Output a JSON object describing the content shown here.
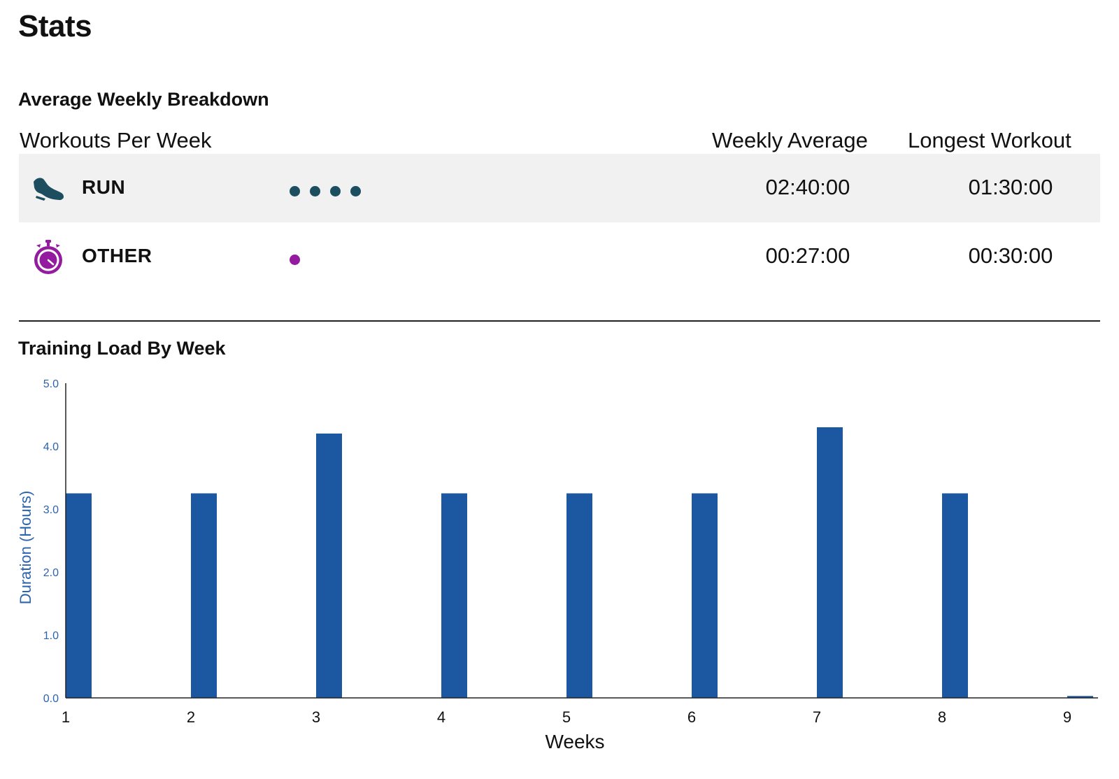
{
  "page": {
    "title": "Stats"
  },
  "breakdown": {
    "title": "Average Weekly Breakdown",
    "headers": {
      "workouts_per_week": "Workouts Per Week",
      "weekly_average": "Weekly Average",
      "longest_workout": "Longest Workout"
    },
    "rows": [
      {
        "label": "RUN",
        "icon": "running-shoe-icon",
        "workouts_per_week": 4,
        "weekly_average": "02:40:00",
        "longest_workout": "01:30:00",
        "color": "#1d4e5f"
      },
      {
        "label": "OTHER",
        "icon": "stopwatch-icon",
        "workouts_per_week": 1,
        "weekly_average": "00:27:00",
        "longest_workout": "00:30:00",
        "color": "#941ba0"
      }
    ]
  },
  "training": {
    "title": "Training Load By Week"
  },
  "chart_data": {
    "type": "bar",
    "title": "Training Load By Week",
    "xlabel": "Weeks",
    "ylabel": "Duration (Hours)",
    "categories": [
      "1",
      "2",
      "3",
      "4",
      "5",
      "6",
      "7",
      "8",
      "9"
    ],
    "values": [
      3.25,
      3.25,
      4.2,
      3.25,
      3.25,
      3.25,
      4.3,
      3.25,
      0.03
    ],
    "ylim": [
      0,
      5
    ],
    "yticks": [
      "0.0",
      "1.0",
      "2.0",
      "3.0",
      "4.0",
      "5.0"
    ],
    "grid": false,
    "bar_color": "#1c58a2",
    "ytick_color": "#2b63ad"
  }
}
